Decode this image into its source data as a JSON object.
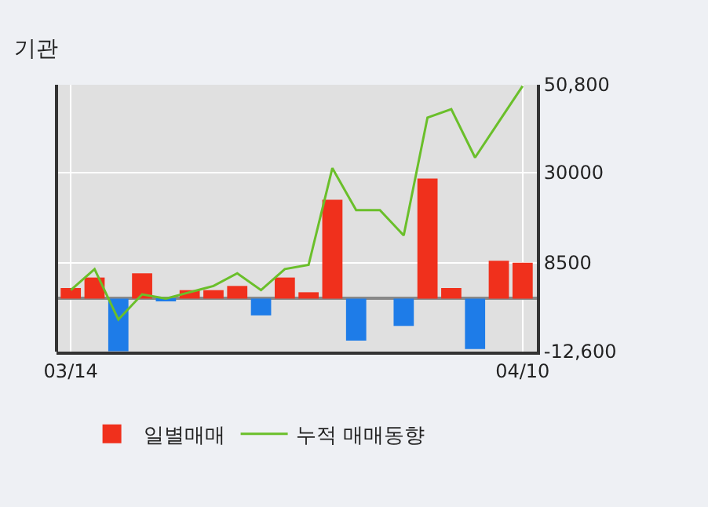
{
  "chart_data": {
    "type": "bar",
    "title": "기관",
    "categories": [
      "03/14",
      null,
      null,
      null,
      null,
      null,
      null,
      null,
      null,
      null,
      null,
      null,
      null,
      null,
      null,
      null,
      null,
      null,
      null,
      "04/10"
    ],
    "series": [
      {
        "name": "일별매매",
        "colors": [
          "#f0301c",
          "#f0301c",
          "#1e7ce8",
          "#f0301c",
          "#1e7ce8",
          "#f0301c",
          "#f0301c",
          "#f0301c",
          "#1e7ce8",
          "#f0301c",
          "#f0301c",
          "#f0301c",
          "#1e7ce8",
          "#f0301c",
          "#1e7ce8",
          "#f0301c",
          "#f0301c",
          "#1e7ce8",
          "#f0301c",
          "#f0301c"
        ],
        "values": [
          2500,
          5000,
          -12500,
          6000,
          -500,
          2000,
          2000,
          3000,
          -4000,
          5000,
          1500,
          23500,
          -10000,
          0,
          -6500,
          28500,
          2500,
          -12000,
          9000,
          8500
        ]
      },
      {
        "name": "누적 매매동향",
        "type": "line",
        "color": "#6abf2a",
        "values": [
          2000,
          7000,
          -5000,
          1000,
          0,
          1500,
          3000,
          6000,
          2000,
          7000,
          8000,
          31000,
          21000,
          21000,
          15000,
          43000,
          45000,
          33500,
          42000,
          50500
        ]
      }
    ],
    "ylim": [
      -12600,
      50800
    ],
    "yticks": [
      {
        "value": -12600,
        "label": "-12,600"
      },
      8500,
      30000,
      {
        "value": 50800,
        "label": "50,800"
      }
    ],
    "grid": true,
    "legend": "bottom",
    "marker": "none",
    "line_style": "solid"
  }
}
